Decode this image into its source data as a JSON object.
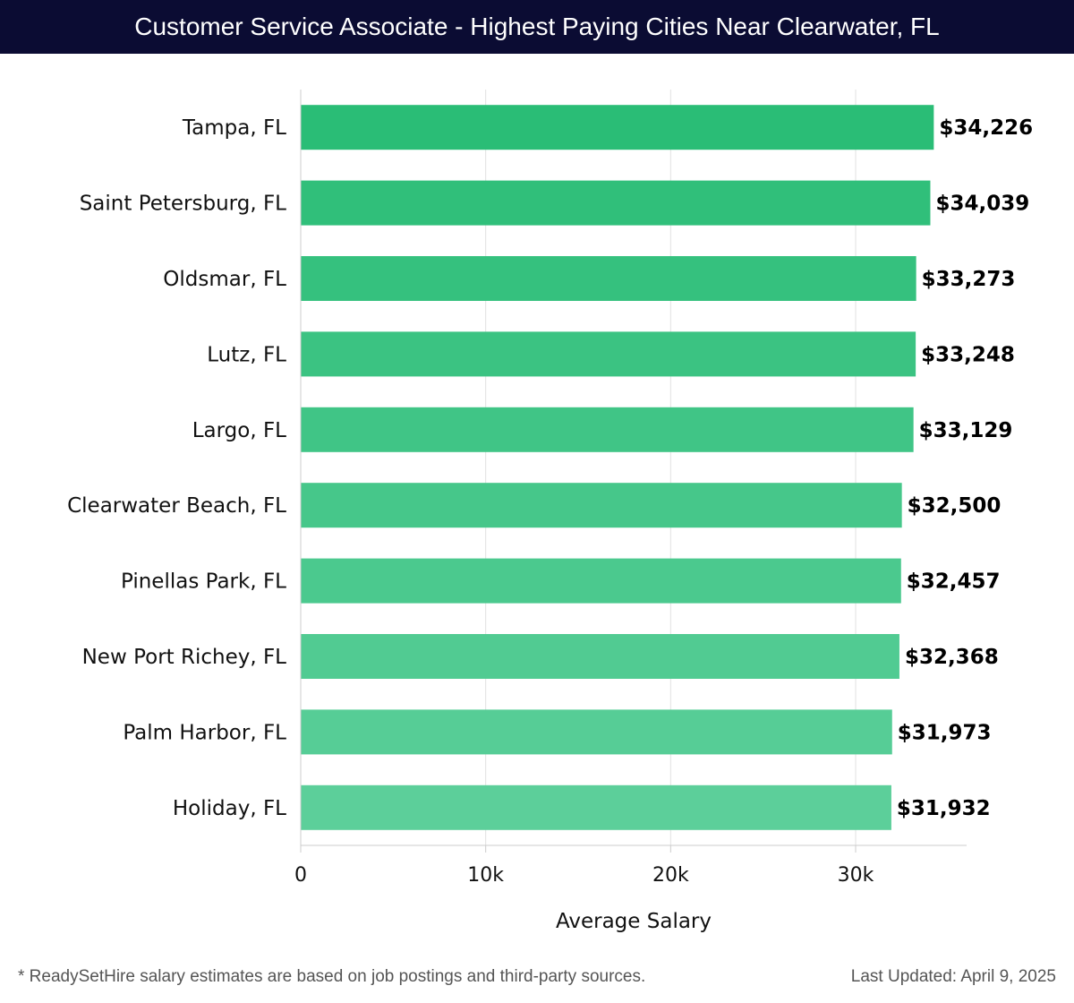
{
  "header": {
    "title": "Customer Service Associate - Highest Paying Cities Near Clearwater, FL"
  },
  "footer": {
    "note": "* ReadySetHire salary estimates are based on job postings and third-party sources.",
    "updated": "Last Updated: April 9, 2025"
  },
  "colors": {
    "header_bg": "#0b0c33",
    "bar_top": "#2abd76",
    "bar_bottom": "#5ccf9a"
  },
  "chart_data": {
    "type": "bar",
    "orientation": "horizontal",
    "title": "Customer Service Associate - Highest Paying Cities Near Clearwater, FL",
    "xlabel": "Average Salary",
    "ylabel": "",
    "xlim": [
      0,
      36000
    ],
    "grid": true,
    "ticks": [
      {
        "value": 0,
        "label": "0"
      },
      {
        "value": 10000,
        "label": "10k"
      },
      {
        "value": 20000,
        "label": "20k"
      },
      {
        "value": 30000,
        "label": "30k"
      }
    ],
    "categories": [
      "Tampa, FL",
      "Saint Petersburg, FL",
      "Oldsmar, FL",
      "Lutz, FL",
      "Largo, FL",
      "Clearwater Beach, FL",
      "Pinellas Park, FL",
      "New Port Richey, FL",
      "Palm Harbor, FL",
      "Holiday, FL"
    ],
    "values": [
      34226,
      34039,
      33273,
      33248,
      33129,
      32500,
      32457,
      32368,
      31973,
      31932
    ],
    "value_labels": [
      "$34,226",
      "$34,039",
      "$33,273",
      "$33,248",
      "$33,129",
      "$32,500",
      "$32,457",
      "$32,368",
      "$31,973",
      "$31,932"
    ]
  }
}
